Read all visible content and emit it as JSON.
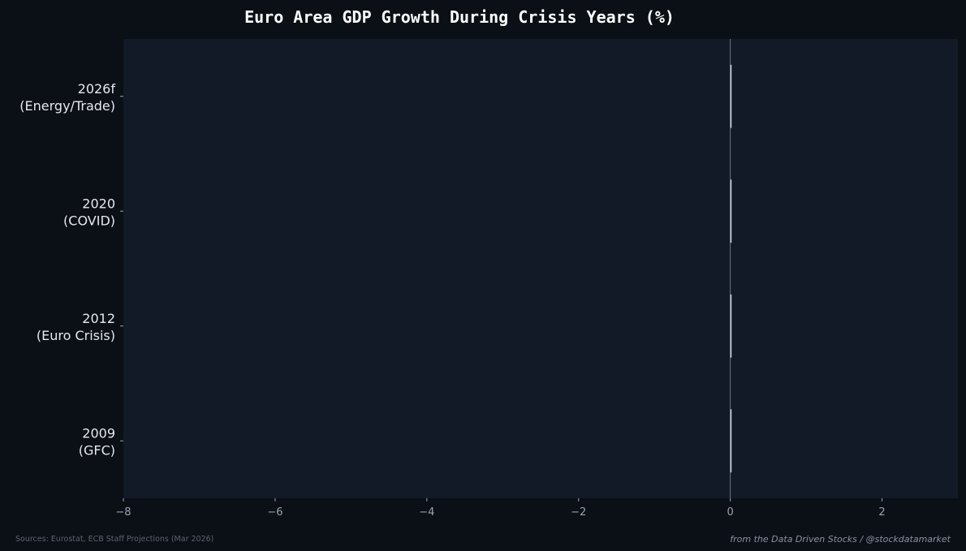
{
  "chart_data": {
    "type": "bar",
    "orientation": "horizontal",
    "title": "Euro Area GDP Growth During Crisis Years (%)",
    "xlabel": "",
    "ylabel": "",
    "xlim": [
      -8,
      3
    ],
    "xticks": [
      -8,
      -6,
      -4,
      -2,
      0,
      2
    ],
    "xtick_labels": [
      "−8",
      "−6",
      "−4",
      "−2",
      "0",
      "2"
    ],
    "categories": [
      [
        "2026f",
        "(Energy/Trade)"
      ],
      [
        "2020",
        "(COVID)"
      ],
      [
        "2012",
        "(Euro Crisis)"
      ],
      [
        "2009",
        "(GFC)"
      ]
    ],
    "values": [
      0,
      0,
      0,
      0
    ],
    "grid": false,
    "legend": "none"
  },
  "footer": {
    "source": "Sources: Eurostat, ECB Staff Projections (Mar 2026)",
    "credit": "from the Data Driven Stocks / @stockdatamarket"
  },
  "colors": {
    "page_background": "#0b0f16",
    "plot_background": "#121a28",
    "bar": "#c9ced6",
    "zero_line": "#6b7480"
  }
}
